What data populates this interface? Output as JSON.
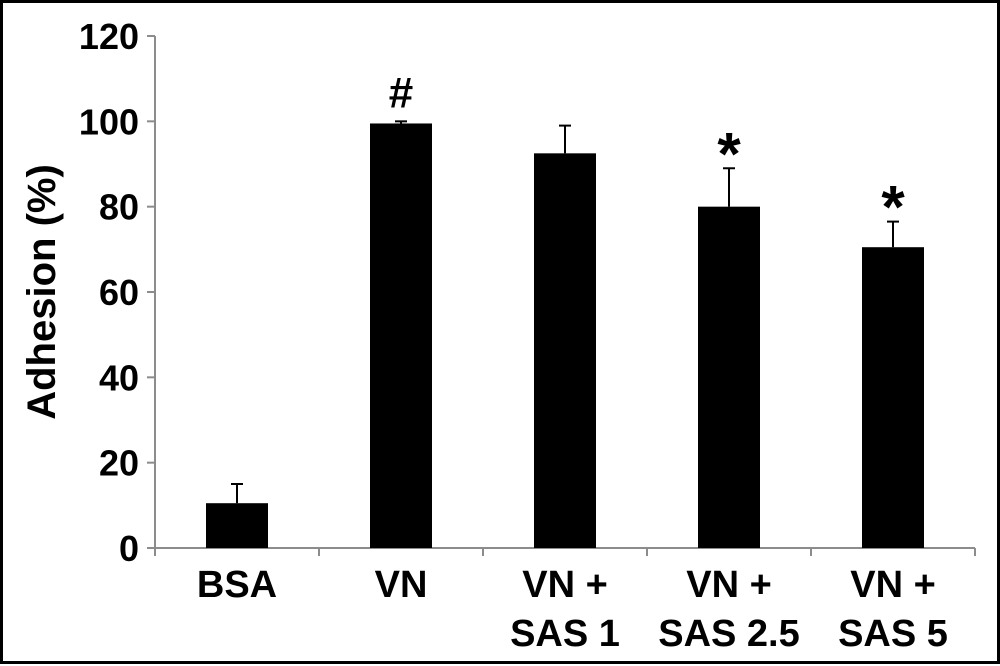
{
  "chart_data": {
    "type": "bar",
    "categories": [
      [
        "BSA"
      ],
      [
        "VN"
      ],
      [
        "VN +",
        "SAS 1"
      ],
      [
        "VN +",
        "SAS 2.5"
      ],
      [
        "VN +",
        "SAS 5"
      ]
    ],
    "values": [
      10.5,
      99.5,
      92.5,
      80,
      70.5
    ],
    "error_bars": [
      4.5,
      0.5,
      6.5,
      9,
      6
    ],
    "annotations": [
      "",
      "#",
      "",
      "*",
      "*"
    ],
    "ylabel": "Adhesion (%)",
    "xlabel": "",
    "ylim": [
      0,
      120
    ],
    "yticks": [
      0,
      20,
      40,
      60,
      80,
      100,
      120
    ],
    "grid": false,
    "bar_color": "#000000"
  }
}
